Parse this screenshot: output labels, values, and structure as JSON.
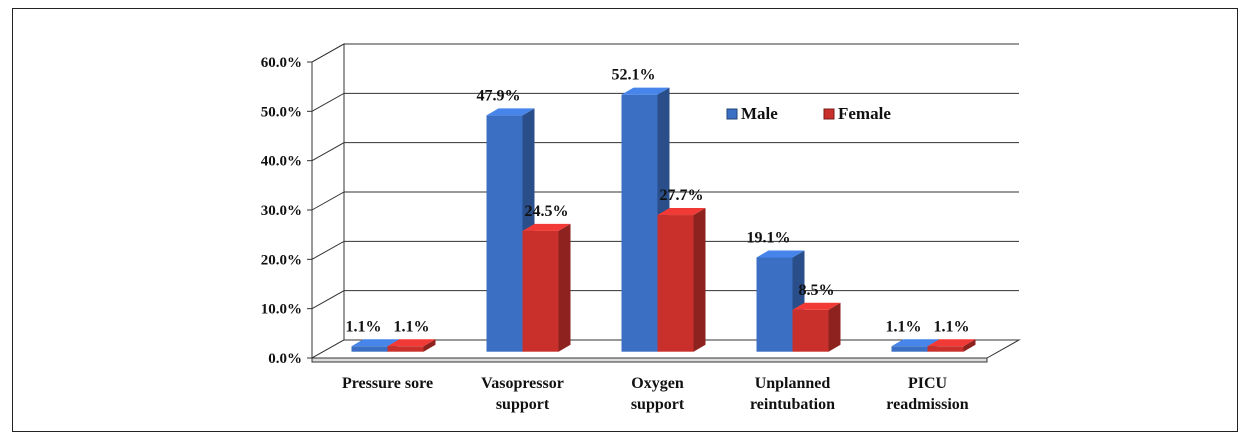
{
  "chart_data": {
    "type": "bar",
    "categories": [
      [
        "Pressure sore"
      ],
      [
        "Vasopressor",
        "support"
      ],
      [
        "Oxygen",
        "support"
      ],
      [
        "Unplanned",
        "reintubation"
      ],
      [
        "PICU",
        "readmission"
      ]
    ],
    "series": [
      {
        "name": "Male",
        "values": [
          1.1,
          47.9,
          52.1,
          19.1,
          1.1
        ],
        "labels": [
          "1.1%",
          "47.9%",
          "52.1%",
          "19.1%",
          "1.1%"
        ],
        "color": "#3b6fc4"
      },
      {
        "name": "Female",
        "values": [
          1.1,
          24.5,
          27.7,
          8.5,
          1.1
        ],
        "labels": [
          "1.1%",
          "24.5%",
          "27.7%",
          "8.5%",
          "1.1%"
        ],
        "color": "#c9302c"
      }
    ],
    "yticks": [
      "0.0%",
      "10.0%",
      "20.0%",
      "30.0%",
      "40.0%",
      "50.0%",
      "60.0%"
    ],
    "ylim": [
      0,
      60
    ],
    "grid": true,
    "legend_position": "top-right"
  }
}
